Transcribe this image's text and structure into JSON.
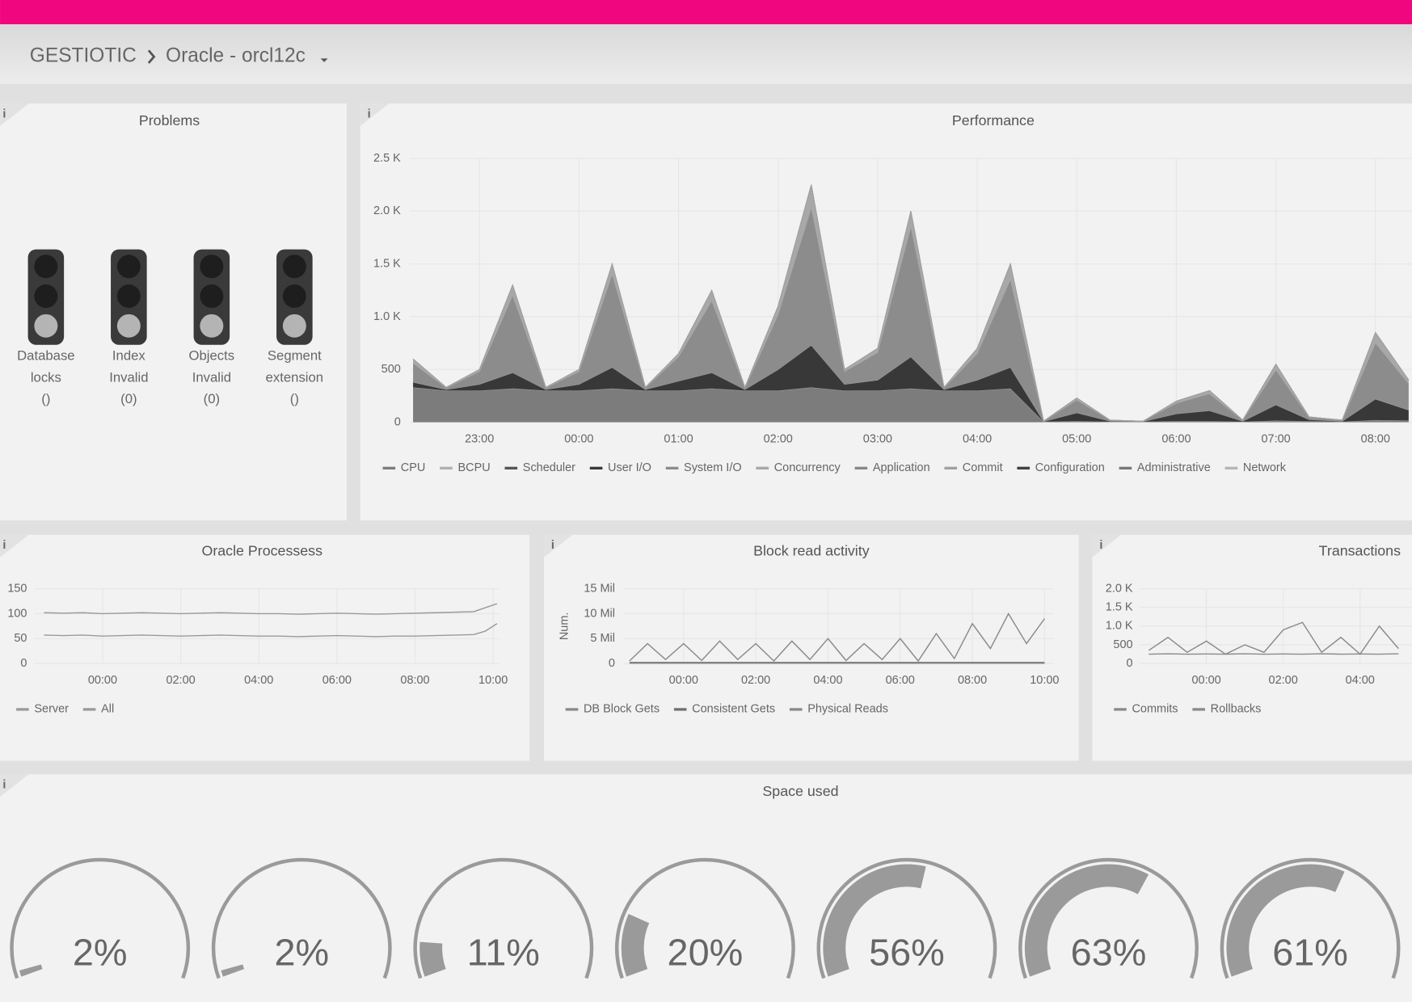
{
  "header": {
    "brand": "GESTIOTIC",
    "database": "Oracle - orcl12c"
  },
  "problems": {
    "title": "Problems",
    "items": [
      {
        "label": [
          "Database",
          "locks"
        ],
        "count": "()"
      },
      {
        "label": [
          "Index",
          "Invalid"
        ],
        "count": "(0)"
      },
      {
        "label": [
          "Objects",
          "Invalid"
        ],
        "count": "(0)"
      },
      {
        "label": [
          "Segment",
          "extension"
        ],
        "count": "()"
      }
    ]
  },
  "chart_data": [
    {
      "type": "area",
      "stacked": true,
      "title": "Performance",
      "grid": true,
      "x": [
        20,
        40,
        60,
        80,
        100,
        120,
        140,
        160,
        180,
        200,
        220,
        240,
        260,
        280,
        300,
        320,
        340,
        360,
        380,
        400,
        420,
        440,
        460,
        480,
        500,
        520,
        540,
        560,
        580,
        600,
        620
      ],
      "xlim": [
        18,
        622
      ],
      "xticks": [
        {
          "value": 60,
          "label": "23:00"
        },
        {
          "value": 120,
          "label": "00:00"
        },
        {
          "value": 180,
          "label": "01:00"
        },
        {
          "value": 240,
          "label": "02:00"
        },
        {
          "value": 300,
          "label": "03:00"
        },
        {
          "value": 360,
          "label": "04:00"
        },
        {
          "value": 420,
          "label": "05:00"
        },
        {
          "value": 480,
          "label": "06:00"
        },
        {
          "value": 540,
          "label": "07:00"
        },
        {
          "value": 600,
          "label": "08:00"
        }
      ],
      "ylim": [
        0,
        2500
      ],
      "yticks": [
        0,
        500,
        {
          "value": 1000,
          "label": "1.0 K"
        },
        {
          "value": 1500,
          "label": "1.5 K"
        },
        {
          "value": 2000,
          "label": "2.0 K"
        },
        {
          "value": 2500,
          "label": "2.5 K"
        }
      ],
      "series": [
        {
          "name": "CPU",
          "color": "#7c7c7c",
          "values": [
            330,
            300,
            300,
            320,
            300,
            300,
            320,
            300,
            300,
            320,
            300,
            300,
            330,
            300,
            300,
            320,
            300,
            300,
            320,
            5,
            10,
            5,
            5,
            10,
            10,
            5,
            15,
            10,
            5,
            20,
            15
          ]
        },
        {
          "name": "BCPU",
          "color": "#b0b0b0",
          "values": [
            0,
            0,
            0,
            0,
            0,
            0,
            0,
            0,
            0,
            0,
            0,
            0,
            0,
            0,
            0,
            0,
            0,
            0,
            0,
            0,
            0,
            0,
            0,
            0,
            0,
            0,
            0,
            0,
            0,
            0,
            0
          ]
        },
        {
          "name": "Scheduler",
          "color": "#555555",
          "values": [
            0,
            0,
            0,
            0,
            0,
            0,
            0,
            0,
            0,
            0,
            0,
            0,
            0,
            0,
            0,
            0,
            0,
            0,
            0,
            0,
            0,
            0,
            0,
            0,
            0,
            0,
            0,
            0,
            0,
            0,
            0
          ]
        },
        {
          "name": "User I/O",
          "color": "#383838",
          "values": [
            50,
            10,
            60,
            150,
            10,
            60,
            200,
            10,
            90,
            150,
            10,
            200,
            400,
            60,
            100,
            300,
            10,
            100,
            200,
            2,
            80,
            5,
            2,
            70,
            100,
            5,
            150,
            15,
            5,
            200,
            100
          ]
        },
        {
          "name": "System I/O",
          "color": "#8c8c8c",
          "values": [
            180,
            15,
            120,
            730,
            15,
            120,
            880,
            15,
            230,
            680,
            15,
            520,
            1300,
            120,
            260,
            1230,
            15,
            250,
            830,
            2,
            120,
            8,
            2,
            100,
            160,
            8,
            330,
            20,
            8,
            530,
            250
          ]
        },
        {
          "name": "Concurrency",
          "color": "#a8a8a8",
          "values": [
            40,
            5,
            20,
            100,
            5,
            20,
            100,
            5,
            30,
            100,
            5,
            80,
            220,
            20,
            40,
            150,
            5,
            50,
            150,
            1,
            20,
            2,
            1,
            20,
            30,
            2,
            55,
            5,
            2,
            100,
            35
          ]
        },
        {
          "name": "Application",
          "color": "#888888",
          "values": [
            0,
            0,
            0,
            0,
            0,
            0,
            0,
            0,
            0,
            0,
            0,
            0,
            0,
            0,
            0,
            0,
            0,
            0,
            0,
            0,
            0,
            0,
            0,
            0,
            0,
            0,
            0,
            0,
            0,
            0,
            0
          ]
        },
        {
          "name": "Commit",
          "color": "#a0a0a0",
          "values": [
            0,
            0,
            0,
            0,
            0,
            0,
            0,
            0,
            0,
            0,
            0,
            0,
            0,
            0,
            0,
            0,
            0,
            0,
            0,
            0,
            0,
            0,
            0,
            0,
            0,
            0,
            0,
            0,
            0,
            0,
            0
          ]
        },
        {
          "name": "Configuration",
          "color": "#404040",
          "values": [
            0,
            0,
            0,
            0,
            0,
            0,
            0,
            0,
            0,
            0,
            0,
            0,
            0,
            0,
            0,
            0,
            0,
            0,
            0,
            0,
            0,
            0,
            0,
            0,
            0,
            0,
            0,
            0,
            0,
            0,
            0
          ]
        },
        {
          "name": "Administrative",
          "color": "#777777",
          "values": [
            0,
            0,
            0,
            0,
            0,
            0,
            0,
            0,
            0,
            0,
            0,
            0,
            0,
            0,
            0,
            0,
            0,
            0,
            0,
            0,
            0,
            0,
            0,
            0,
            0,
            0,
            0,
            0,
            0,
            0,
            0
          ]
        },
        {
          "name": "Network",
          "color": "#b5b5b5",
          "values": [
            0,
            0,
            0,
            0,
            0,
            0,
            0,
            0,
            0,
            0,
            0,
            0,
            0,
            0,
            0,
            0,
            0,
            0,
            0,
            0,
            0,
            0,
            0,
            0,
            0,
            0,
            0,
            0,
            0,
            0,
            0
          ]
        }
      ]
    },
    {
      "type": "line",
      "title": "Oracle Processess",
      "grid": true,
      "x": [
        -1.5,
        -1,
        -0.5,
        0,
        0.5,
        1,
        1.5,
        2,
        2.5,
        3,
        3.5,
        4,
        4.5,
        5,
        5.5,
        6,
        6.5,
        7,
        7.5,
        8,
        8.5,
        9,
        9.5,
        9.8,
        10.1
      ],
      "xlim": [
        -1.75,
        10.17
      ],
      "xticks": [
        {
          "value": 0,
          "label": "00:00"
        },
        {
          "value": 2,
          "label": "02:00"
        },
        {
          "value": 4,
          "label": "04:00"
        },
        {
          "value": 6,
          "label": "06:00"
        },
        {
          "value": 8,
          "label": "08:00"
        },
        {
          "value": 10,
          "label": "10:00"
        }
      ],
      "ylim": [
        0,
        150
      ],
      "yticks": [
        0,
        50,
        100,
        150
      ],
      "series": [
        {
          "name": "Server",
          "color": "#9a9a9a",
          "values": [
            57,
            56,
            57,
            55,
            56,
            57,
            56,
            55,
            56,
            57,
            56,
            55,
            55,
            54,
            55,
            56,
            55,
            54,
            55,
            55,
            56,
            57,
            58,
            65,
            80
          ]
        },
        {
          "name": "All",
          "color": "#9a9a9a",
          "values": [
            102,
            101,
            102,
            100,
            101,
            102,
            101,
            100,
            101,
            102,
            101,
            100,
            100,
            99,
            100,
            101,
            100,
            99,
            100,
            101,
            102,
            103,
            104,
            112,
            120
          ]
        }
      ]
    },
    {
      "type": "line",
      "title": "Block read activity",
      "ylabel": "Num.",
      "grid": true,
      "x": [
        -1.5,
        -1,
        -0.5,
        0,
        0.5,
        1,
        1.5,
        2,
        2.5,
        3,
        3.5,
        4,
        4.5,
        5,
        5.5,
        6,
        6.5,
        7,
        7.5,
        8,
        8.5,
        9,
        9.5,
        10
      ],
      "xlim": [
        -1.675,
        10.25
      ],
      "xticks": [
        {
          "value": 0,
          "label": "00:00"
        },
        {
          "value": 2,
          "label": "02:00"
        },
        {
          "value": 4,
          "label": "04:00"
        },
        {
          "value": 6,
          "label": "06:00"
        },
        {
          "value": 8,
          "label": "08:00"
        },
        {
          "value": 10,
          "label": "10:00"
        }
      ],
      "ylim": [
        0,
        15000000
      ],
      "yticks": [
        0,
        {
          "value": 5000000,
          "label": "5 Mil"
        },
        {
          "value": 10000000,
          "label": "10 Mil"
        },
        {
          "value": 15000000,
          "label": "15 Mil"
        }
      ],
      "series": [
        {
          "name": "DB Block Gets",
          "color": "#8a8a8a",
          "values": [
            500000,
            4000000,
            800000,
            4000000,
            600000,
            4500000,
            800000,
            4000000,
            500000,
            4500000,
            800000,
            5000000,
            600000,
            4000000,
            800000,
            5000000,
            500000,
            6000000,
            1000000,
            8000000,
            3000000,
            10000000,
            4000000,
            9000000
          ]
        },
        {
          "name": "Consistent Gets",
          "color": "#707070",
          "values": [
            200000,
            200000,
            200000,
            200000,
            200000,
            200000,
            200000,
            200000,
            200000,
            200000,
            200000,
            200000,
            200000,
            200000,
            200000,
            200000,
            200000,
            200000,
            200000,
            200000,
            200000,
            200000,
            200000,
            200000
          ]
        },
        {
          "name": "Physical Reads",
          "color": "#8a8a8a",
          "values": [
            50000,
            50000,
            50000,
            50000,
            50000,
            50000,
            50000,
            50000,
            50000,
            50000,
            50000,
            50000,
            50000,
            50000,
            50000,
            50000,
            50000,
            50000,
            50000,
            50000,
            50000,
            50000,
            50000,
            50000
          ]
        }
      ]
    },
    {
      "type": "line",
      "title": "Transactions",
      "grid": true,
      "x": [
        -1.5,
        -1,
        -0.5,
        0,
        0.5,
        1,
        1.5,
        2,
        2.5,
        3,
        3.5,
        4,
        4.5,
        5
      ],
      "xlim": [
        -1.75,
        5.35
      ],
      "xticks": [
        {
          "value": 0,
          "label": "00:00"
        },
        {
          "value": 2,
          "label": "02:00"
        },
        {
          "value": 4,
          "label": "04:00"
        }
      ],
      "ylim": [
        0,
        2000
      ],
      "yticks": [
        0,
        500,
        {
          "value": 1000,
          "label": "1.0 K"
        },
        {
          "value": 1500,
          "label": "1.5 K"
        },
        {
          "value": 2000,
          "label": "2.0 K"
        }
      ],
      "series": [
        {
          "name": "Commits",
          "color": "#8a8a8a",
          "values": [
            350,
            700,
            300,
            600,
            250,
            500,
            300,
            900,
            1100,
            300,
            700,
            250,
            1000,
            400
          ]
        },
        {
          "name": "Rollbacks",
          "color": "#8a8a8a",
          "values": [
            250,
            260,
            250,
            255,
            250,
            260,
            250,
            255,
            250,
            260,
            250,
            255,
            250,
            260
          ]
        }
      ]
    },
    {
      "type": "gauge",
      "title": "Space used",
      "color": "#9a9a9a",
      "ylim": [
        0,
        100
      ],
      "values": [
        2,
        2,
        11,
        20,
        56,
        63,
        61
      ],
      "value_labels": [
        "2%",
        "2%",
        "11%",
        "20%",
        "56%",
        "63%",
        "61%"
      ]
    }
  ]
}
